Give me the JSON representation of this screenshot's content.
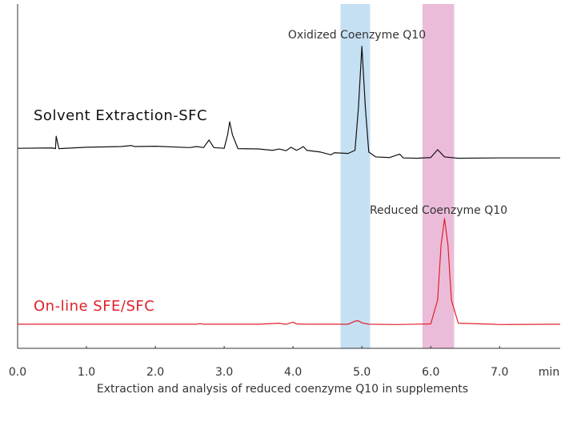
{
  "chart_data": {
    "type": "line",
    "caption": "Extraction and analysis of reduced coenzyme Q10 in supplements",
    "x_label": "min",
    "xlim": [
      0,
      7.88
    ],
    "xticks": [
      {
        "value": 0,
        "label": "0.0"
      },
      {
        "value": 1,
        "label": "1.0"
      },
      {
        "value": 2,
        "label": "2.0"
      },
      {
        "value": 3,
        "label": "3.0"
      },
      {
        "value": 4,
        "label": "4.0"
      },
      {
        "value": 5,
        "label": "5.0"
      },
      {
        "value": 6,
        "label": "6.0"
      },
      {
        "value": 7,
        "label": "7.0"
      }
    ],
    "ylim": [
      0,
      100
    ],
    "bands": [
      {
        "xmin": 4.69,
        "xmax": 5.12,
        "color": "#c6e0f3"
      },
      {
        "xmin": 5.88,
        "xmax": 6.34,
        "color": "#ebbcd9"
      }
    ],
    "annotations": [
      "Oxidized Coenzyme Q10",
      "Reduced Coenzyme Q10"
    ],
    "series": [
      {
        "name": "Solvent Extraction-SFC",
        "color": "#111111",
        "x": [
          0,
          0.5,
          0.55,
          0.56,
          0.6,
          1.0,
          1.5,
          1.65,
          1.7,
          2.0,
          2.5,
          2.6,
          2.7,
          2.78,
          2.85,
          3.0,
          3.05,
          3.08,
          3.12,
          3.2,
          3.5,
          3.7,
          3.8,
          3.9,
          3.97,
          4.05,
          4.1,
          4.15,
          4.2,
          4.4,
          4.55,
          4.6,
          4.8,
          4.9,
          4.95,
          5.0,
          5.05,
          5.1,
          5.2,
          5.4,
          5.55,
          5.6,
          5.8,
          6.0,
          6.1,
          6.2,
          6.4,
          7.0,
          7.88
        ],
        "values": [
          58.1,
          58.2,
          58.0,
          61.6,
          58.0,
          58.4,
          58.6,
          58.9,
          58.6,
          58.7,
          58.3,
          58.6,
          58.3,
          60.5,
          58.3,
          58.1,
          62.0,
          65.8,
          62.0,
          58.0,
          57.9,
          57.5,
          57.9,
          57.4,
          58.4,
          57.5,
          58.0,
          58.6,
          57.5,
          57.0,
          56.2,
          56.8,
          56.6,
          57.5,
          70.0,
          87.7,
          70.0,
          57.0,
          55.6,
          55.4,
          56.4,
          55.3,
          55.2,
          55.4,
          57.7,
          55.6,
          55.2,
          55.3,
          55.3
        ]
      },
      {
        "name": "On-line SFE/SFC",
        "color": "#e0202a",
        "x": [
          0,
          2.6,
          2.65,
          2.7,
          3.5,
          3.8,
          3.85,
          3.9,
          4.0,
          4.05,
          4.2,
          4.8,
          4.9,
          4.95,
          5.0,
          5.1,
          5.5,
          6.0,
          6.1,
          6.15,
          6.2,
          6.25,
          6.3,
          6.4,
          6.9,
          7.0,
          7.88
        ],
        "values": [
          7.0,
          7.0,
          7.2,
          7.0,
          7.0,
          7.3,
          7.1,
          7.0,
          7.6,
          7.1,
          7.0,
          7.0,
          7.9,
          8.0,
          7.4,
          7.0,
          6.9,
          7.1,
          14,
          30,
          37.7,
          30,
          14,
          7.3,
          7.0,
          6.9,
          7.0
        ]
      }
    ]
  }
}
